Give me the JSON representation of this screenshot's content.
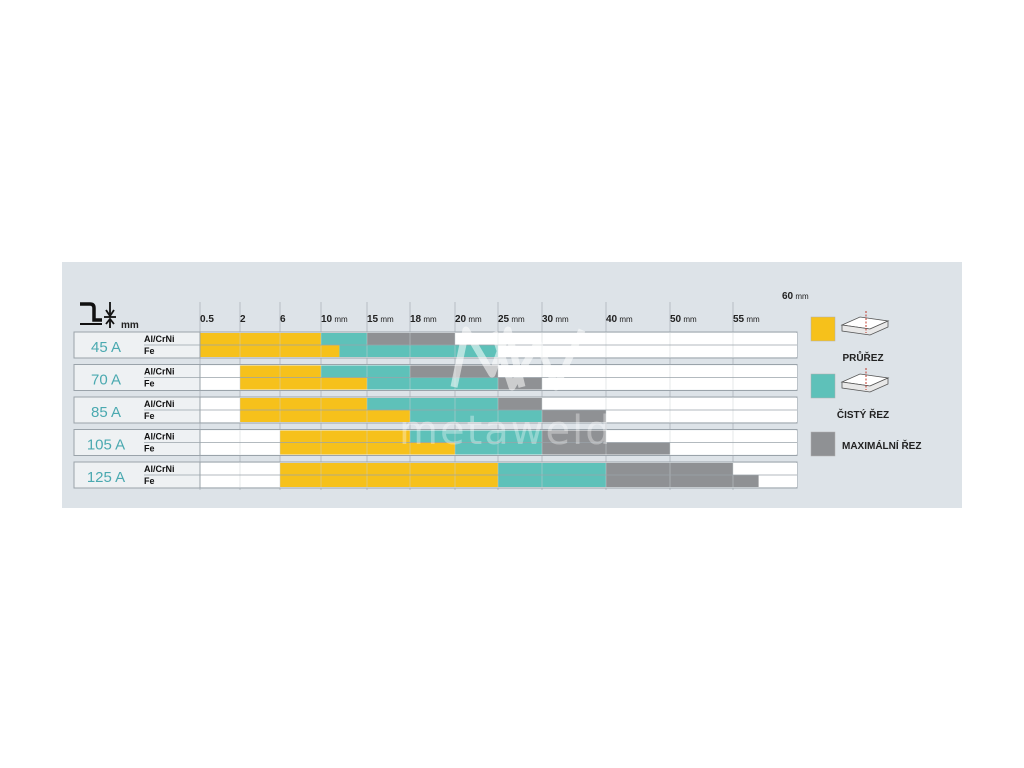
{
  "chart_data": {
    "type": "bar",
    "subtype": "stacked-horizontal-range",
    "axis_unit": "mm",
    "ticks": [
      {
        "label": "0.5",
        "unit": ""
      },
      {
        "label": "2",
        "unit": ""
      },
      {
        "label": "6",
        "unit": ""
      },
      {
        "label": "10",
        "unit": "mm"
      },
      {
        "label": "15",
        "unit": "mm"
      },
      {
        "label": "18",
        "unit": "mm"
      },
      {
        "label": "20",
        "unit": "mm"
      },
      {
        "label": "25",
        "unit": "mm"
      },
      {
        "label": "30",
        "unit": "mm"
      },
      {
        "label": "40",
        "unit": "mm"
      },
      {
        "label": "50",
        "unit": "mm"
      },
      {
        "label": "55",
        "unit": "mm"
      },
      {
        "label": "60",
        "unit": "mm"
      }
    ],
    "tick_values": [
      0.5,
      2,
      6,
      10,
      15,
      18,
      20,
      25,
      30,
      40,
      50,
      55,
      60
    ],
    "series": [
      {
        "name": "PRŮŘEZ",
        "color": "#f6c11b"
      },
      {
        "name": "ČISTÝ ŘEZ",
        "color": "#5ec1b9"
      },
      {
        "name": "MAXIMÁLNÍ ŘEZ",
        "color": "#8f9194"
      }
    ],
    "rows": [
      {
        "current": "45 A",
        "materials": [
          {
            "name": "Al/CrNi",
            "segments": [
              [
                0.5,
                10,
                0
              ],
              [
                10,
                15,
                1
              ],
              [
                15,
                20,
                2
              ]
            ]
          },
          {
            "name": "Fe",
            "segments": [
              [
                0.5,
                12,
                0
              ],
              [
                12,
                25,
                1
              ]
            ]
          }
        ]
      },
      {
        "current": "70 A",
        "materials": [
          {
            "name": "Al/CrNi",
            "segments": [
              [
                2,
                10,
                0
              ],
              [
                10,
                18,
                1
              ],
              [
                18,
                25,
                2
              ]
            ]
          },
          {
            "name": "Fe",
            "segments": [
              [
                2,
                15,
                0
              ],
              [
                15,
                25,
                1
              ],
              [
                25,
                30,
                2
              ]
            ]
          }
        ]
      },
      {
        "current": "85 A",
        "materials": [
          {
            "name": "Al/CrNi",
            "segments": [
              [
                2,
                15,
                0
              ],
              [
                15,
                25,
                1
              ],
              [
                25,
                30,
                2
              ]
            ]
          },
          {
            "name": "Fe",
            "segments": [
              [
                2,
                18,
                0
              ],
              [
                18,
                30,
                1
              ],
              [
                30,
                40,
                2
              ]
            ]
          }
        ]
      },
      {
        "current": "105 A",
        "materials": [
          {
            "name": "Al/CrNi",
            "segments": [
              [
                6,
                18,
                0
              ],
              [
                18,
                30,
                1
              ],
              [
                30,
                40,
                2
              ]
            ]
          },
          {
            "name": "Fe",
            "segments": [
              [
                6,
                20,
                0
              ],
              [
                20,
                30,
                1
              ],
              [
                30,
                50,
                2
              ]
            ]
          }
        ]
      },
      {
        "current": "125 A",
        "materials": [
          {
            "name": "Al/CrNi",
            "segments": [
              [
                6,
                25,
                0
              ],
              [
                25,
                40,
                1
              ],
              [
                40,
                55,
                2
              ]
            ]
          },
          {
            "name": "Fe",
            "segments": [
              [
                6,
                25,
                0
              ],
              [
                25,
                40,
                1
              ],
              [
                40,
                57,
                2
              ]
            ]
          }
        ]
      }
    ],
    "legend_placement": "right"
  },
  "header": {
    "unit_label": "mm"
  },
  "legend": [
    {
      "label": "PRŮŘEZ",
      "color": "#f6c11b",
      "icon": "plate-pierce-icon"
    },
    {
      "label": "ČISTÝ ŘEZ",
      "color": "#5ec1b9",
      "icon": "plate-cut-icon"
    },
    {
      "label": "MAXIMÁLNÍ ŘEZ",
      "color": "#8f9194",
      "icon": ""
    }
  ],
  "watermark": {
    "logo_letters": "MW",
    "text": "metaweld"
  },
  "colors": {
    "background": "#dde3e8",
    "grid": "#b8bec4",
    "row_fill": "#eef1f3",
    "amp_text": "#4aa9b0"
  }
}
